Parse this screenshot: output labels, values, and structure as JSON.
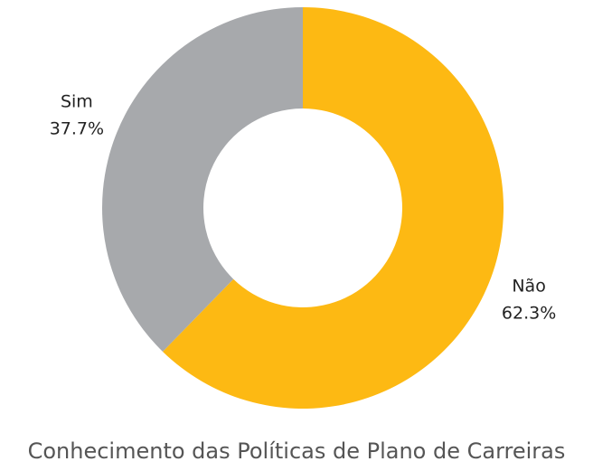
{
  "chart_data": {
    "type": "donut",
    "title": "Conhecimento das Políticas de Plano de Carreiras",
    "categories": [
      "Não",
      "Sim"
    ],
    "values": [
      62.3,
      37.7
    ],
    "value_labels": [
      "62.3%",
      "37.7%"
    ],
    "colors": [
      "#FDB913",
      "#A7A9AC"
    ]
  }
}
